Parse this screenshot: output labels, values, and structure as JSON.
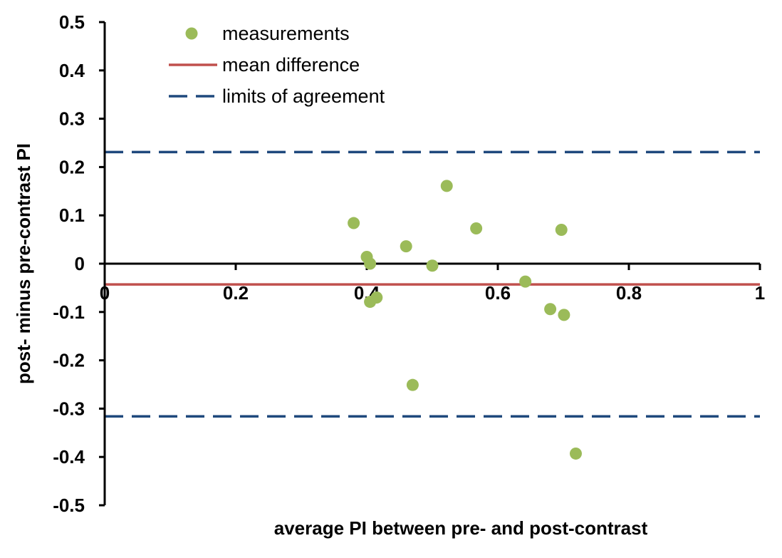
{
  "chart_data": {
    "type": "scatter",
    "title": "",
    "xlabel": "average PI between pre- and post-contrast",
    "ylabel": "post- minus pre-contrast PI",
    "xlim": [
      0,
      1
    ],
    "ylim": [
      -0.5,
      0.5
    ],
    "x_ticks": [
      0,
      0.2,
      0.4,
      0.6,
      0.8,
      1
    ],
    "x_tick_labels": [
      "0",
      "0.2",
      "0.4",
      "0.6",
      "0.8",
      "1"
    ],
    "y_ticks": [
      0.5,
      0.4,
      0.3,
      0.2,
      0.1,
      0,
      -0.1,
      -0.2,
      -0.3,
      -0.4,
      -0.5
    ],
    "y_tick_labels": [
      "0.5",
      "0.4",
      "0.3",
      "0.2",
      "0.1",
      "0",
      "-0.1",
      "-0.2",
      "-0.3",
      "-0.4",
      "-0.5"
    ],
    "grid": false,
    "legend_position": "top-left",
    "series": [
      {
        "name": "measurements",
        "kind": "points",
        "color": "#9bbb59",
        "points": [
          {
            "x": 0.38,
            "y": 0.084
          },
          {
            "x": 0.4,
            "y": 0.014
          },
          {
            "x": 0.405,
            "y": 0.0
          },
          {
            "x": 0.405,
            "y": -0.079
          },
          {
            "x": 0.415,
            "y": -0.07
          },
          {
            "x": 0.46,
            "y": 0.036
          },
          {
            "x": 0.47,
            "y": -0.251
          },
          {
            "x": 0.5,
            "y": -0.004
          },
          {
            "x": 0.522,
            "y": 0.161
          },
          {
            "x": 0.567,
            "y": 0.073
          },
          {
            "x": 0.642,
            "y": -0.037
          },
          {
            "x": 0.68,
            "y": -0.094
          },
          {
            "x": 0.697,
            "y": 0.07
          },
          {
            "x": 0.701,
            "y": -0.106
          },
          {
            "x": 0.719,
            "y": -0.393
          }
        ]
      },
      {
        "name": "mean difference",
        "kind": "hline",
        "color": "#c0504d",
        "y": -0.043
      },
      {
        "name": "limits of agreement",
        "kind": "hline-dashed",
        "color": "#1f497d",
        "y_values": [
          0.231,
          -0.316
        ]
      }
    ]
  }
}
